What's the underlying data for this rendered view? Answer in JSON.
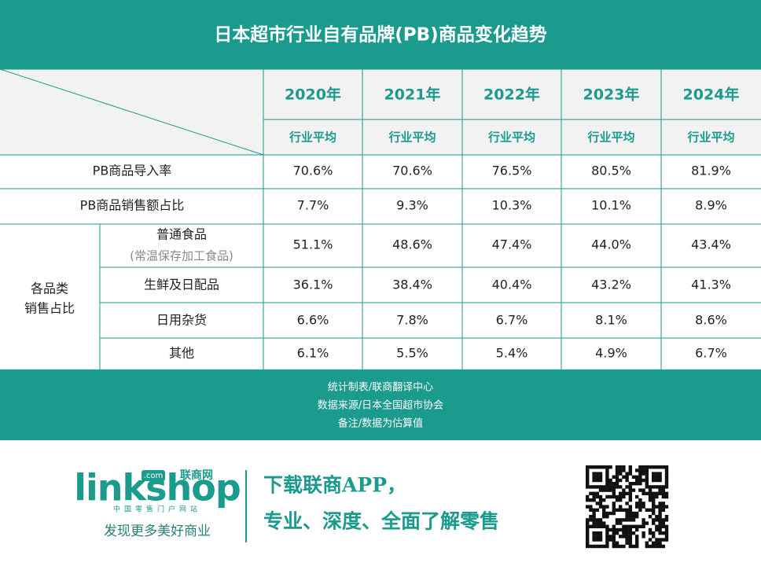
{
  "header": {
    "title": "日本超市行业自有品牌(PB)商品变化趋势"
  },
  "table": {
    "years": [
      "2020年",
      "2021年",
      "2022年",
      "2023年",
      "2024年"
    ],
    "subheaders": [
      "行业平均",
      "行业平均",
      "行业平均",
      "行业平均",
      "行业平均"
    ],
    "rows": [
      {
        "label": "PB商品导入率",
        "values": [
          "70.6%",
          "70.6%",
          "76.5%",
          "80.5%",
          "81.9%"
        ]
      },
      {
        "label": "PB商品销售额占比",
        "values": [
          "7.7%",
          "9.3%",
          "10.3%",
          "10.1%",
          "8.9%"
        ]
      }
    ],
    "group": {
      "label_lines": [
        "各品类",
        "销售占比"
      ],
      "rows": [
        {
          "label": "普通食品",
          "note": "(常温保存加工食品)",
          "values": [
            "51.1%",
            "48.6%",
            "47.4%",
            "44.0%",
            "43.4%"
          ]
        },
        {
          "label": "生鲜及日配品",
          "values": [
            "36.1%",
            "38.4%",
            "40.4%",
            "43.2%",
            "41.3%"
          ]
        },
        {
          "label": "日用杂货",
          "values": [
            "6.6%",
            "7.8%",
            "6.7%",
            "8.1%",
            "8.6%"
          ]
        },
        {
          "label": "其他",
          "values": [
            "6.1%",
            "5.5%",
            "5.4%",
            "4.9%",
            "6.7%"
          ]
        }
      ]
    }
  },
  "footer": {
    "notes": [
      "统计制表/联商翻译中心",
      "数据来源/日本全国超市协会",
      "备注/数据为估算值"
    ]
  },
  "promo": {
    "logo": "linkshop",
    "logo_badge": ".com",
    "logo_name": "联商网",
    "logo_sub": "中国零售门户网站",
    "tagline": "发现更多美好商业",
    "slogan": [
      "下载联商APP，",
      "专业、深度、全面了解零售"
    ]
  }
}
